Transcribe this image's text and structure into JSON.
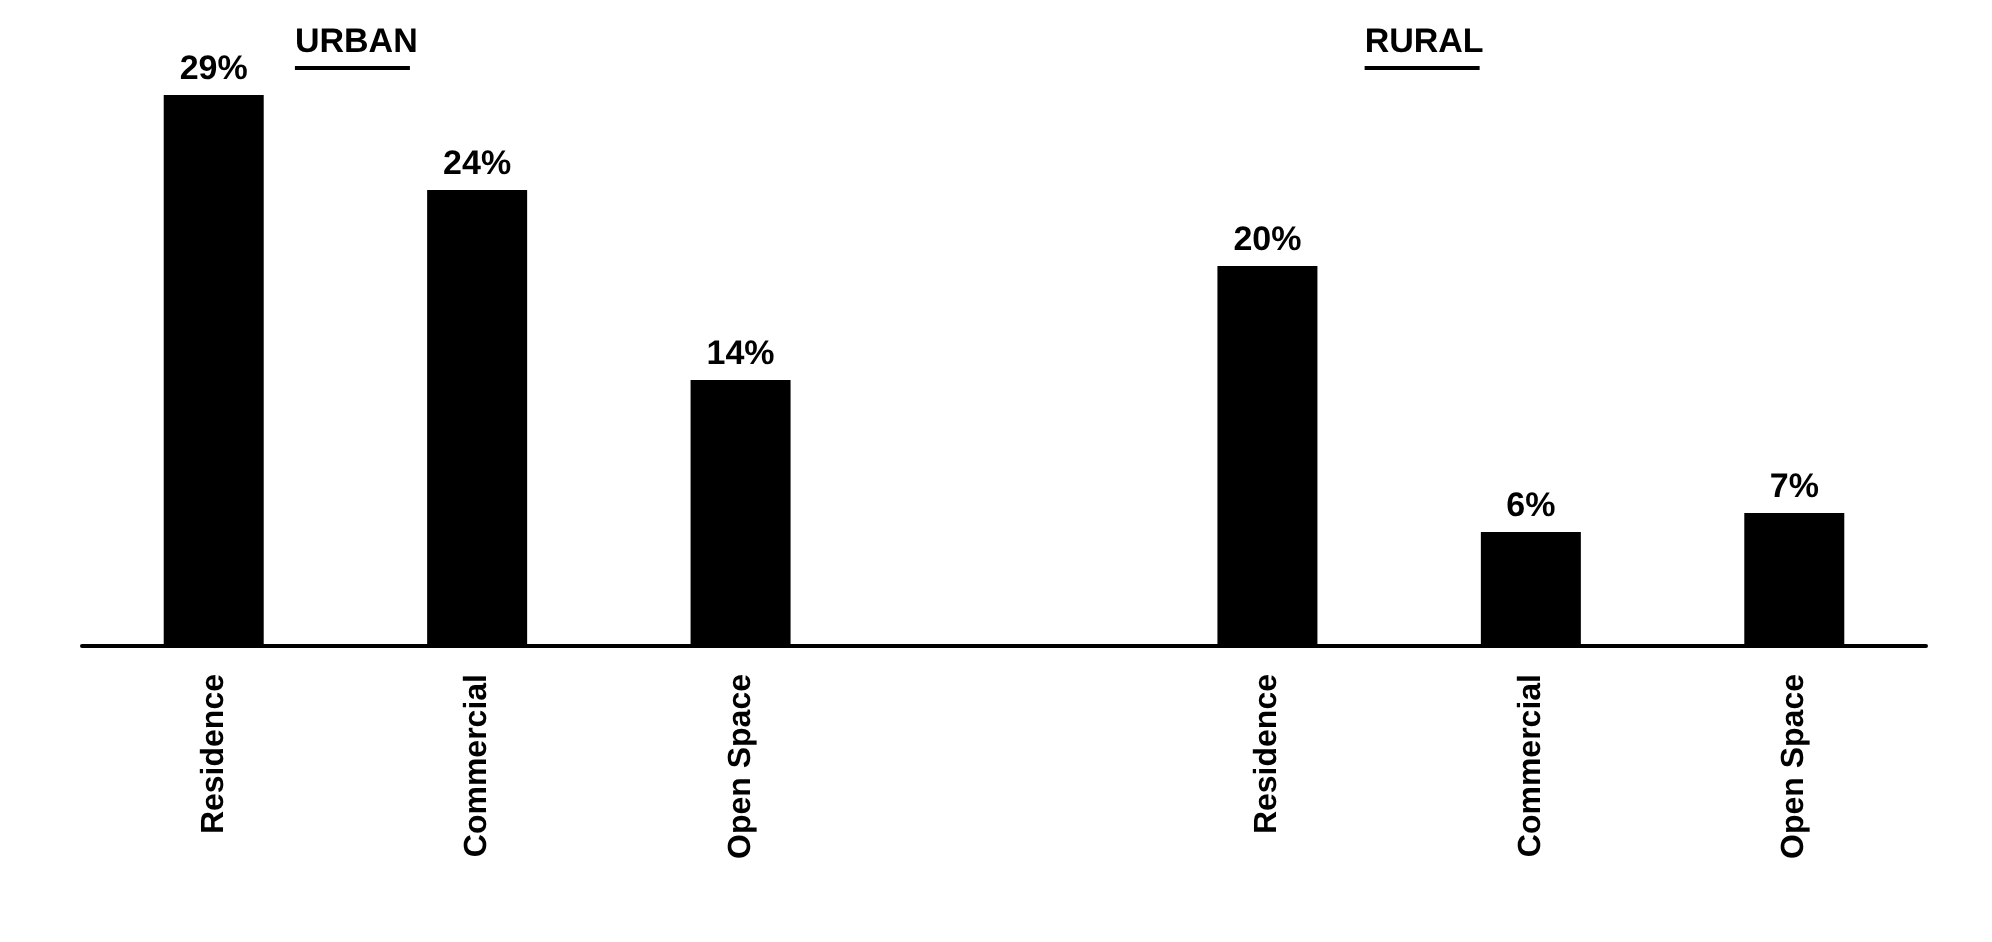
{
  "chart_data": {
    "type": "bar",
    "categories": [
      "Residence",
      "Commercial",
      "Open Space",
      null,
      "Residence",
      "Commercial",
      "Open Space"
    ],
    "values": [
      29,
      24,
      14,
      null,
      20,
      6,
      7
    ],
    "value_labels": [
      "29%",
      "24%",
      "14%",
      null,
      "20%",
      "6%",
      "7%"
    ],
    "color": "#000000",
    "annotations": [
      "URBAN",
      "RURAL"
    ]
  }
}
